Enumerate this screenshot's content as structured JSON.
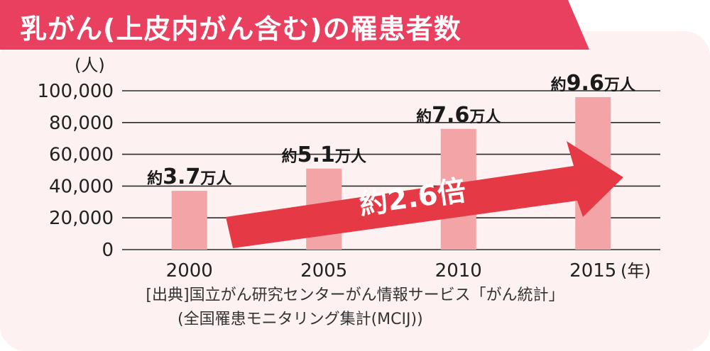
{
  "title": "乳がん(上皮内がん含む)の罹患者数",
  "chart_data": {
    "type": "bar",
    "title": "乳がん(上皮内がん含む)の罹患者数",
    "ylabel": "(人)",
    "xunit": "(年)",
    "categories": [
      "2000",
      "2005",
      "2010",
      "2015"
    ],
    "values": [
      37000,
      51000,
      76000,
      96000
    ],
    "data_labels": [
      {
        "prefix": "約",
        "number": "3.7",
        "suffix": "万人"
      },
      {
        "prefix": "約",
        "number": "5.1",
        "suffix": "万人"
      },
      {
        "prefix": "約",
        "number": "7.6",
        "suffix": "万人"
      },
      {
        "prefix": "約",
        "number": "9.6",
        "suffix": "万人"
      }
    ],
    "yticks": [
      0,
      20000,
      40000,
      60000,
      80000,
      100000
    ],
    "ytick_labels": [
      "0",
      "20,000",
      "40,000",
      "60,000",
      "80,000",
      "100,000"
    ],
    "ylim": [
      0,
      100000
    ],
    "grid": true,
    "annotation": "約2.6倍",
    "colors": {
      "bar": "#f2a4a6",
      "arrow": "#e63946",
      "title_bg": "#e8405e"
    }
  },
  "source": {
    "line1": "[出典]国立がん研究センターがん情報サービス「がん統計」",
    "line2": "(全国罹患モニタリング集計(MCIJ))"
  }
}
